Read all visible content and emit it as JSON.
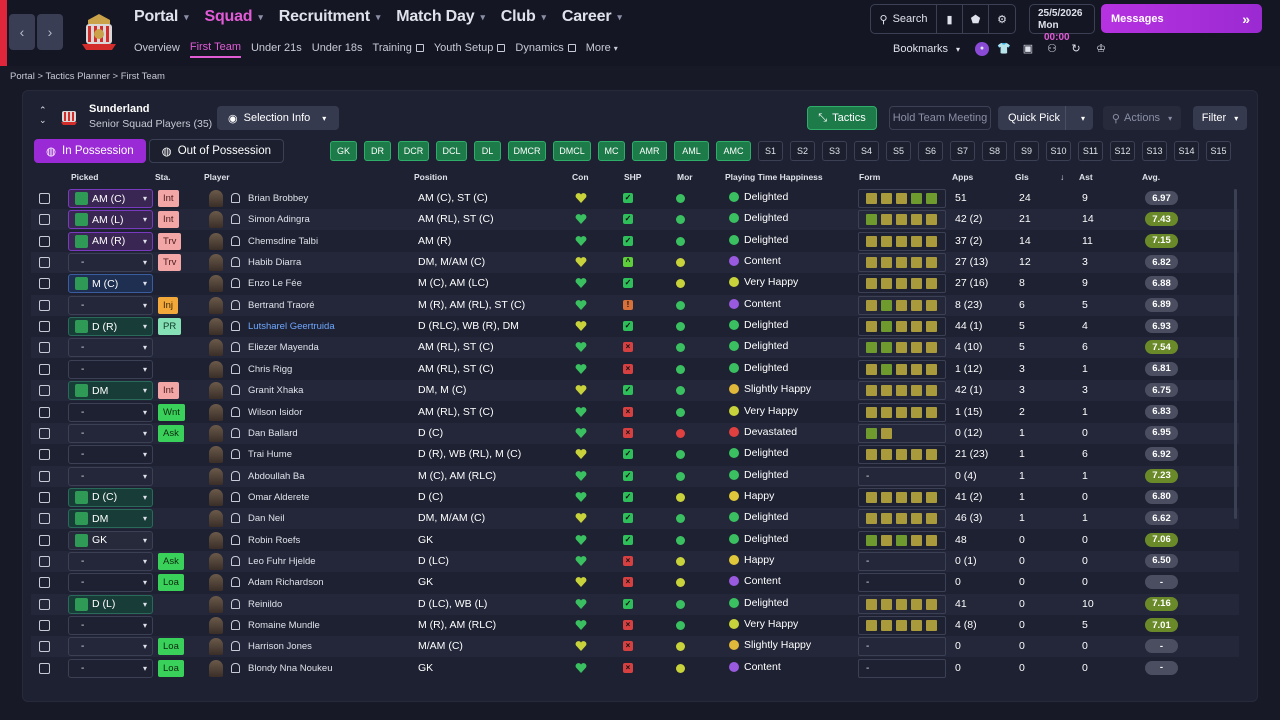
{
  "nav": {
    "main": [
      "Portal",
      "Squad",
      "Recruitment",
      "Match Day",
      "Club",
      "Career"
    ],
    "active_main": "Squad",
    "sub": [
      "Overview",
      "First Team",
      "Under 21s",
      "Under 18s",
      "Training",
      "Youth Setup",
      "Dynamics",
      "More"
    ],
    "active_sub": "First Team",
    "search_label": "Search",
    "date": "25/5/2026",
    "day": "Mon",
    "time": "00:00",
    "messages_label": "Messages",
    "bookmarks_label": "Bookmarks"
  },
  "breadcrumb": [
    "Portal",
    "Tactics Planner",
    "First Team"
  ],
  "club": {
    "name": "Sunderland",
    "subtitle": "Senior Squad Players (35)"
  },
  "toolbar": {
    "selection_info": "Selection Info",
    "tactics": "Tactics",
    "hold_meeting": "Hold Team Meeting",
    "quick_pick": "Quick Pick",
    "actions": "Actions",
    "filter": "Filter"
  },
  "tabs": {
    "in_possession": "In Possession",
    "out_possession": "Out of Possession"
  },
  "position_buttons": [
    "GK",
    "DR",
    "DCR",
    "DCL",
    "DL",
    "DMCR",
    "DMCL",
    "MC",
    "AMR",
    "AML",
    "AMC",
    "S1",
    "S2",
    "S3",
    "S4",
    "S5",
    "S6",
    "S7",
    "S8",
    "S9",
    "S10",
    "S11",
    "S12",
    "S13",
    "S14",
    "S15"
  ],
  "columns": {
    "picked": "Picked",
    "sta": "Sta.",
    "player": "Player",
    "position": "Position",
    "con": "Con",
    "shp": "SHP",
    "mor": "Mor",
    "happiness": "Playing Time Happiness",
    "form": "Form",
    "apps": "Apps",
    "gls": "Gls",
    "ast": "Ast",
    "avg": "Avg."
  },
  "colors": {
    "accent": "#e25bd7",
    "green": "#2e9a56",
    "int": "#f2a6a6",
    "trv": "#f2a6a6",
    "inj": "#f3a93a",
    "pr": "#86e0b6",
    "wnt": "#3ad15a",
    "ask": "#3ad15a",
    "loa": "#3ad15a"
  },
  "rows": [
    {
      "picked": "AM (C)",
      "pk_style": "purple",
      "sta": "Int",
      "name": "Brian Brobbey",
      "pos": "AM (C), ST (C)",
      "shp": "ok",
      "mor": "g",
      "happy": "Delighted",
      "form": [
        "y",
        "y",
        "y",
        "g",
        "g"
      ],
      "apps": "51",
      "gls": "24",
      "ast": "9",
      "avg": "6.97",
      "avgc": "grey"
    },
    {
      "picked": "AM (L)",
      "pk_style": "purple",
      "sta": "Int",
      "name": "Simon Adingra",
      "pos": "AM (RL), ST (C)",
      "shp": "ok",
      "mor": "g",
      "happy": "Delighted",
      "form": [
        "g",
        "y",
        "y",
        "y",
        "y"
      ],
      "apps": "42 (2)",
      "gls": "21",
      "ast": "14",
      "avg": "7.43",
      "avgc": "green"
    },
    {
      "picked": "AM (R)",
      "pk_style": "purple",
      "sta": "Trv",
      "name": "Chemsdine Talbi",
      "pos": "AM (R)",
      "shp": "ok",
      "mor": "g",
      "happy": "Delighted",
      "form": [
        "y",
        "y",
        "y",
        "y",
        "y"
      ],
      "apps": "37 (2)",
      "gls": "14",
      "ast": "11",
      "avg": "7.15",
      "avgc": "green"
    },
    {
      "picked": "-",
      "pk_style": "empty",
      "sta": "Trv",
      "name": "Habib Diarra",
      "pos": "DM, M/AM (C)",
      "shp": "up",
      "mor": "y",
      "happy": "Content",
      "form": [
        "y",
        "y",
        "y",
        "y",
        "y"
      ],
      "apps": "27 (13)",
      "gls": "12",
      "ast": "3",
      "avg": "6.82",
      "avgc": "grey"
    },
    {
      "picked": "M (C)",
      "pk_style": "blue",
      "sta": "",
      "name": "Enzo Le Fée",
      "pos": "M (C), AM (LC)",
      "shp": "ok",
      "mor": "y",
      "happy": "Very Happy",
      "form": [
        "y",
        "y",
        "y",
        "y",
        "y"
      ],
      "apps": "27 (16)",
      "gls": "8",
      "ast": "9",
      "avg": "6.88",
      "avgc": "grey"
    },
    {
      "picked": "-",
      "pk_style": "empty",
      "sta": "Inj",
      "name": "Bertrand Traoré",
      "pos": "M (R), AM (RL), ST (C)",
      "shp": "warn",
      "mor": "g",
      "happy": "Content",
      "form": [
        "y",
        "g",
        "y",
        "y",
        "y"
      ],
      "apps": "8 (23)",
      "gls": "6",
      "ast": "5",
      "avg": "6.89",
      "avgc": "grey"
    },
    {
      "picked": "D (R)",
      "pk_style": "teal",
      "sta": "PR",
      "name": "Lutsharel Geertruida",
      "pos": "D (RLC), WB (R), DM",
      "shp": "ok",
      "mor": "g",
      "happy": "Delighted",
      "form": [
        "y",
        "g",
        "y",
        "y",
        "y"
      ],
      "apps": "44 (1)",
      "gls": "5",
      "ast": "4",
      "avg": "6.93",
      "avgc": "grey"
    },
    {
      "picked": "-",
      "pk_style": "empty",
      "sta": "",
      "name": "Eliezer Mayenda",
      "pos": "AM (RL), ST (C)",
      "shp": "bad",
      "mor": "g",
      "happy": "Delighted",
      "form": [
        "g",
        "g",
        "y",
        "y",
        "y"
      ],
      "apps": "4 (10)",
      "gls": "5",
      "ast": "6",
      "avg": "7.54",
      "avgc": "green"
    },
    {
      "picked": "-",
      "pk_style": "empty",
      "sta": "",
      "name": "Chris Rigg",
      "pos": "AM (RL), ST (C)",
      "shp": "bad",
      "mor": "g",
      "happy": "Delighted",
      "form": [
        "y",
        "g",
        "y",
        "y",
        "y"
      ],
      "apps": "1 (12)",
      "gls": "3",
      "ast": "1",
      "avg": "6.81",
      "avgc": "grey"
    },
    {
      "picked": "DM",
      "pk_style": "teal",
      "sta": "Int",
      "name": "Granit Xhaka",
      "pos": "DM, M (C)",
      "shp": "ok",
      "mor": "g",
      "happy": "Slightly Happy",
      "form": [
        "y",
        "y",
        "y",
        "y",
        "y"
      ],
      "apps": "42 (1)",
      "gls": "3",
      "ast": "3",
      "avg": "6.75",
      "avgc": "grey"
    },
    {
      "picked": "-",
      "pk_style": "empty",
      "sta": "Wnt",
      "name": "Wilson Isidor",
      "pos": "AM (RL), ST (C)",
      "shp": "bad",
      "mor": "g",
      "happy": "Very Happy",
      "form": [
        "y",
        "y",
        "y",
        "y",
        "y"
      ],
      "apps": "1 (15)",
      "gls": "2",
      "ast": "1",
      "avg": "6.83",
      "avgc": "grey"
    },
    {
      "picked": "-",
      "pk_style": "empty",
      "sta": "Ask",
      "name": "Dan Ballard",
      "pos": "D (C)",
      "shp": "bad",
      "mor": "r",
      "happy": "Devastated",
      "form": [
        "g",
        "y"
      ],
      "apps": "0 (12)",
      "gls": "1",
      "ast": "0",
      "avg": "6.95",
      "avgc": "grey"
    },
    {
      "picked": "-",
      "pk_style": "empty",
      "sta": "",
      "name": "Trai Hume",
      "pos": "D (R), WB (RL), M (C)",
      "shp": "ok",
      "mor": "g",
      "happy": "Delighted",
      "form": [
        "y",
        "y",
        "y",
        "y",
        "y"
      ],
      "apps": "21 (23)",
      "gls": "1",
      "ast": "6",
      "avg": "6.92",
      "avgc": "grey"
    },
    {
      "picked": "-",
      "pk_style": "empty",
      "sta": "",
      "name": "Abdoullah Ba",
      "pos": "M (C), AM (RLC)",
      "shp": "ok",
      "mor": "g",
      "happy": "Delighted",
      "form": [],
      "apps": "0 (4)",
      "gls": "1",
      "ast": "1",
      "avg": "7.23",
      "avgc": "green"
    },
    {
      "picked": "D (C)",
      "pk_style": "teal",
      "sta": "",
      "name": "Omar Alderete",
      "pos": "D (C)",
      "shp": "ok",
      "mor": "y",
      "happy": "Happy",
      "form": [
        "y",
        "y",
        "y",
        "y",
        "y"
      ],
      "apps": "41 (2)",
      "gls": "1",
      "ast": "0",
      "avg": "6.80",
      "avgc": "grey"
    },
    {
      "picked": "DM",
      "pk_style": "teal",
      "sta": "",
      "name": "Dan Neil",
      "pos": "DM, M/AM (C)",
      "shp": "ok",
      "mor": "g",
      "happy": "Delighted",
      "form": [
        "y",
        "y",
        "y",
        "y",
        "y"
      ],
      "apps": "46 (3)",
      "gls": "1",
      "ast": "1",
      "avg": "6.62",
      "avgc": "grey"
    },
    {
      "picked": "GK",
      "pk_style": "dark",
      "sta": "",
      "name": "Robin Roefs",
      "pos": "GK",
      "shp": "ok",
      "mor": "g",
      "happy": "Delighted",
      "form": [
        "g",
        "y",
        "g",
        "y",
        "y"
      ],
      "apps": "48",
      "gls": "0",
      "ast": "0",
      "avg": "7.06",
      "avgc": "green"
    },
    {
      "picked": "-",
      "pk_style": "empty",
      "sta": "Ask",
      "name": "Leo Fuhr Hjelde",
      "pos": "D (LC)",
      "shp": "bad",
      "mor": "y",
      "happy": "Happy",
      "form": [],
      "apps": "0 (1)",
      "gls": "0",
      "ast": "0",
      "avg": "6.50",
      "avgc": "grey"
    },
    {
      "picked": "-",
      "pk_style": "empty",
      "sta": "Loa",
      "name": "Adam Richardson",
      "pos": "GK",
      "shp": "bad",
      "mor": "y",
      "happy": "Content",
      "form": [],
      "apps": "0",
      "gls": "0",
      "ast": "0",
      "avg": "-",
      "avgc": "grey"
    },
    {
      "picked": "D (L)",
      "pk_style": "teal",
      "sta": "",
      "name": "Reinildo",
      "pos": "D (LC), WB (L)",
      "shp": "ok",
      "mor": "g",
      "happy": "Delighted",
      "form": [
        "y",
        "y",
        "y",
        "y",
        "y"
      ],
      "apps": "41",
      "gls": "0",
      "ast": "10",
      "avg": "7.16",
      "avgc": "green"
    },
    {
      "picked": "-",
      "pk_style": "empty",
      "sta": "",
      "name": "Romaine Mundle",
      "pos": "M (R), AM (RLC)",
      "shp": "bad",
      "mor": "g",
      "happy": "Very Happy",
      "form": [
        "y",
        "y",
        "y",
        "y",
        "y"
      ],
      "apps": "4 (8)",
      "gls": "0",
      "ast": "5",
      "avg": "7.01",
      "avgc": "green"
    },
    {
      "picked": "-",
      "pk_style": "empty",
      "sta": "Loa",
      "name": "Harrison Jones",
      "pos": "M/AM (C)",
      "shp": "bad",
      "mor": "y",
      "happy": "Slightly Happy",
      "form": [],
      "apps": "0",
      "gls": "0",
      "ast": "0",
      "avg": "-",
      "avgc": "grey"
    },
    {
      "picked": "-",
      "pk_style": "empty",
      "sta": "Loa",
      "name": "Blondy Nna Noukeu",
      "pos": "GK",
      "shp": "bad",
      "mor": "y",
      "happy": "Content",
      "form": [],
      "apps": "0",
      "gls": "0",
      "ast": "0",
      "avg": "-",
      "avgc": "grey"
    }
  ]
}
